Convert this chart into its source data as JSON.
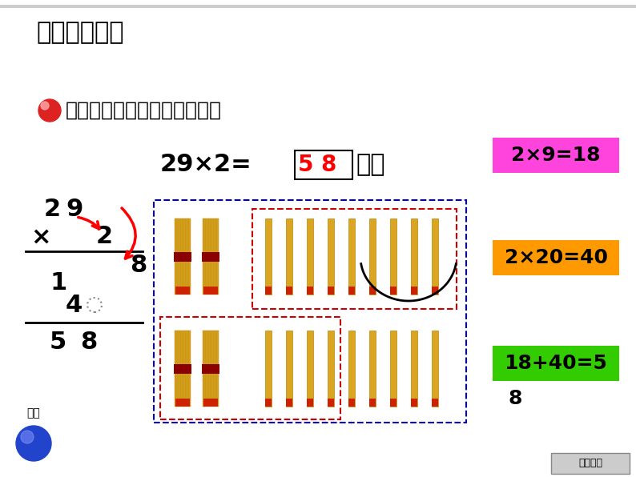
{
  "bg_color": "#ffffff",
  "title1": "二、合作探索",
  "question_text": "表演扇子舞的一共有多少人？",
  "equation_text": "29×2=",
  "answer_5_text": "5",
  "answer_8_text": "8",
  "answer_suffix": "人）",
  "pink_text": "2×9=18",
  "orange_text": "2×20=40",
  "green_text": "18+40=5",
  "green_text2": "8",
  "back_label": "返回",
  "home_label": "返回首页",
  "pink_color": "#ff44dd",
  "orange_color": "#ff9900",
  "green_color": "#33cc00",
  "answer_5_color": "#ff0000",
  "answer_8_color": "#ff0000",
  "blue_box_color": "#0000cc",
  "red_box_color": "#cc0000"
}
